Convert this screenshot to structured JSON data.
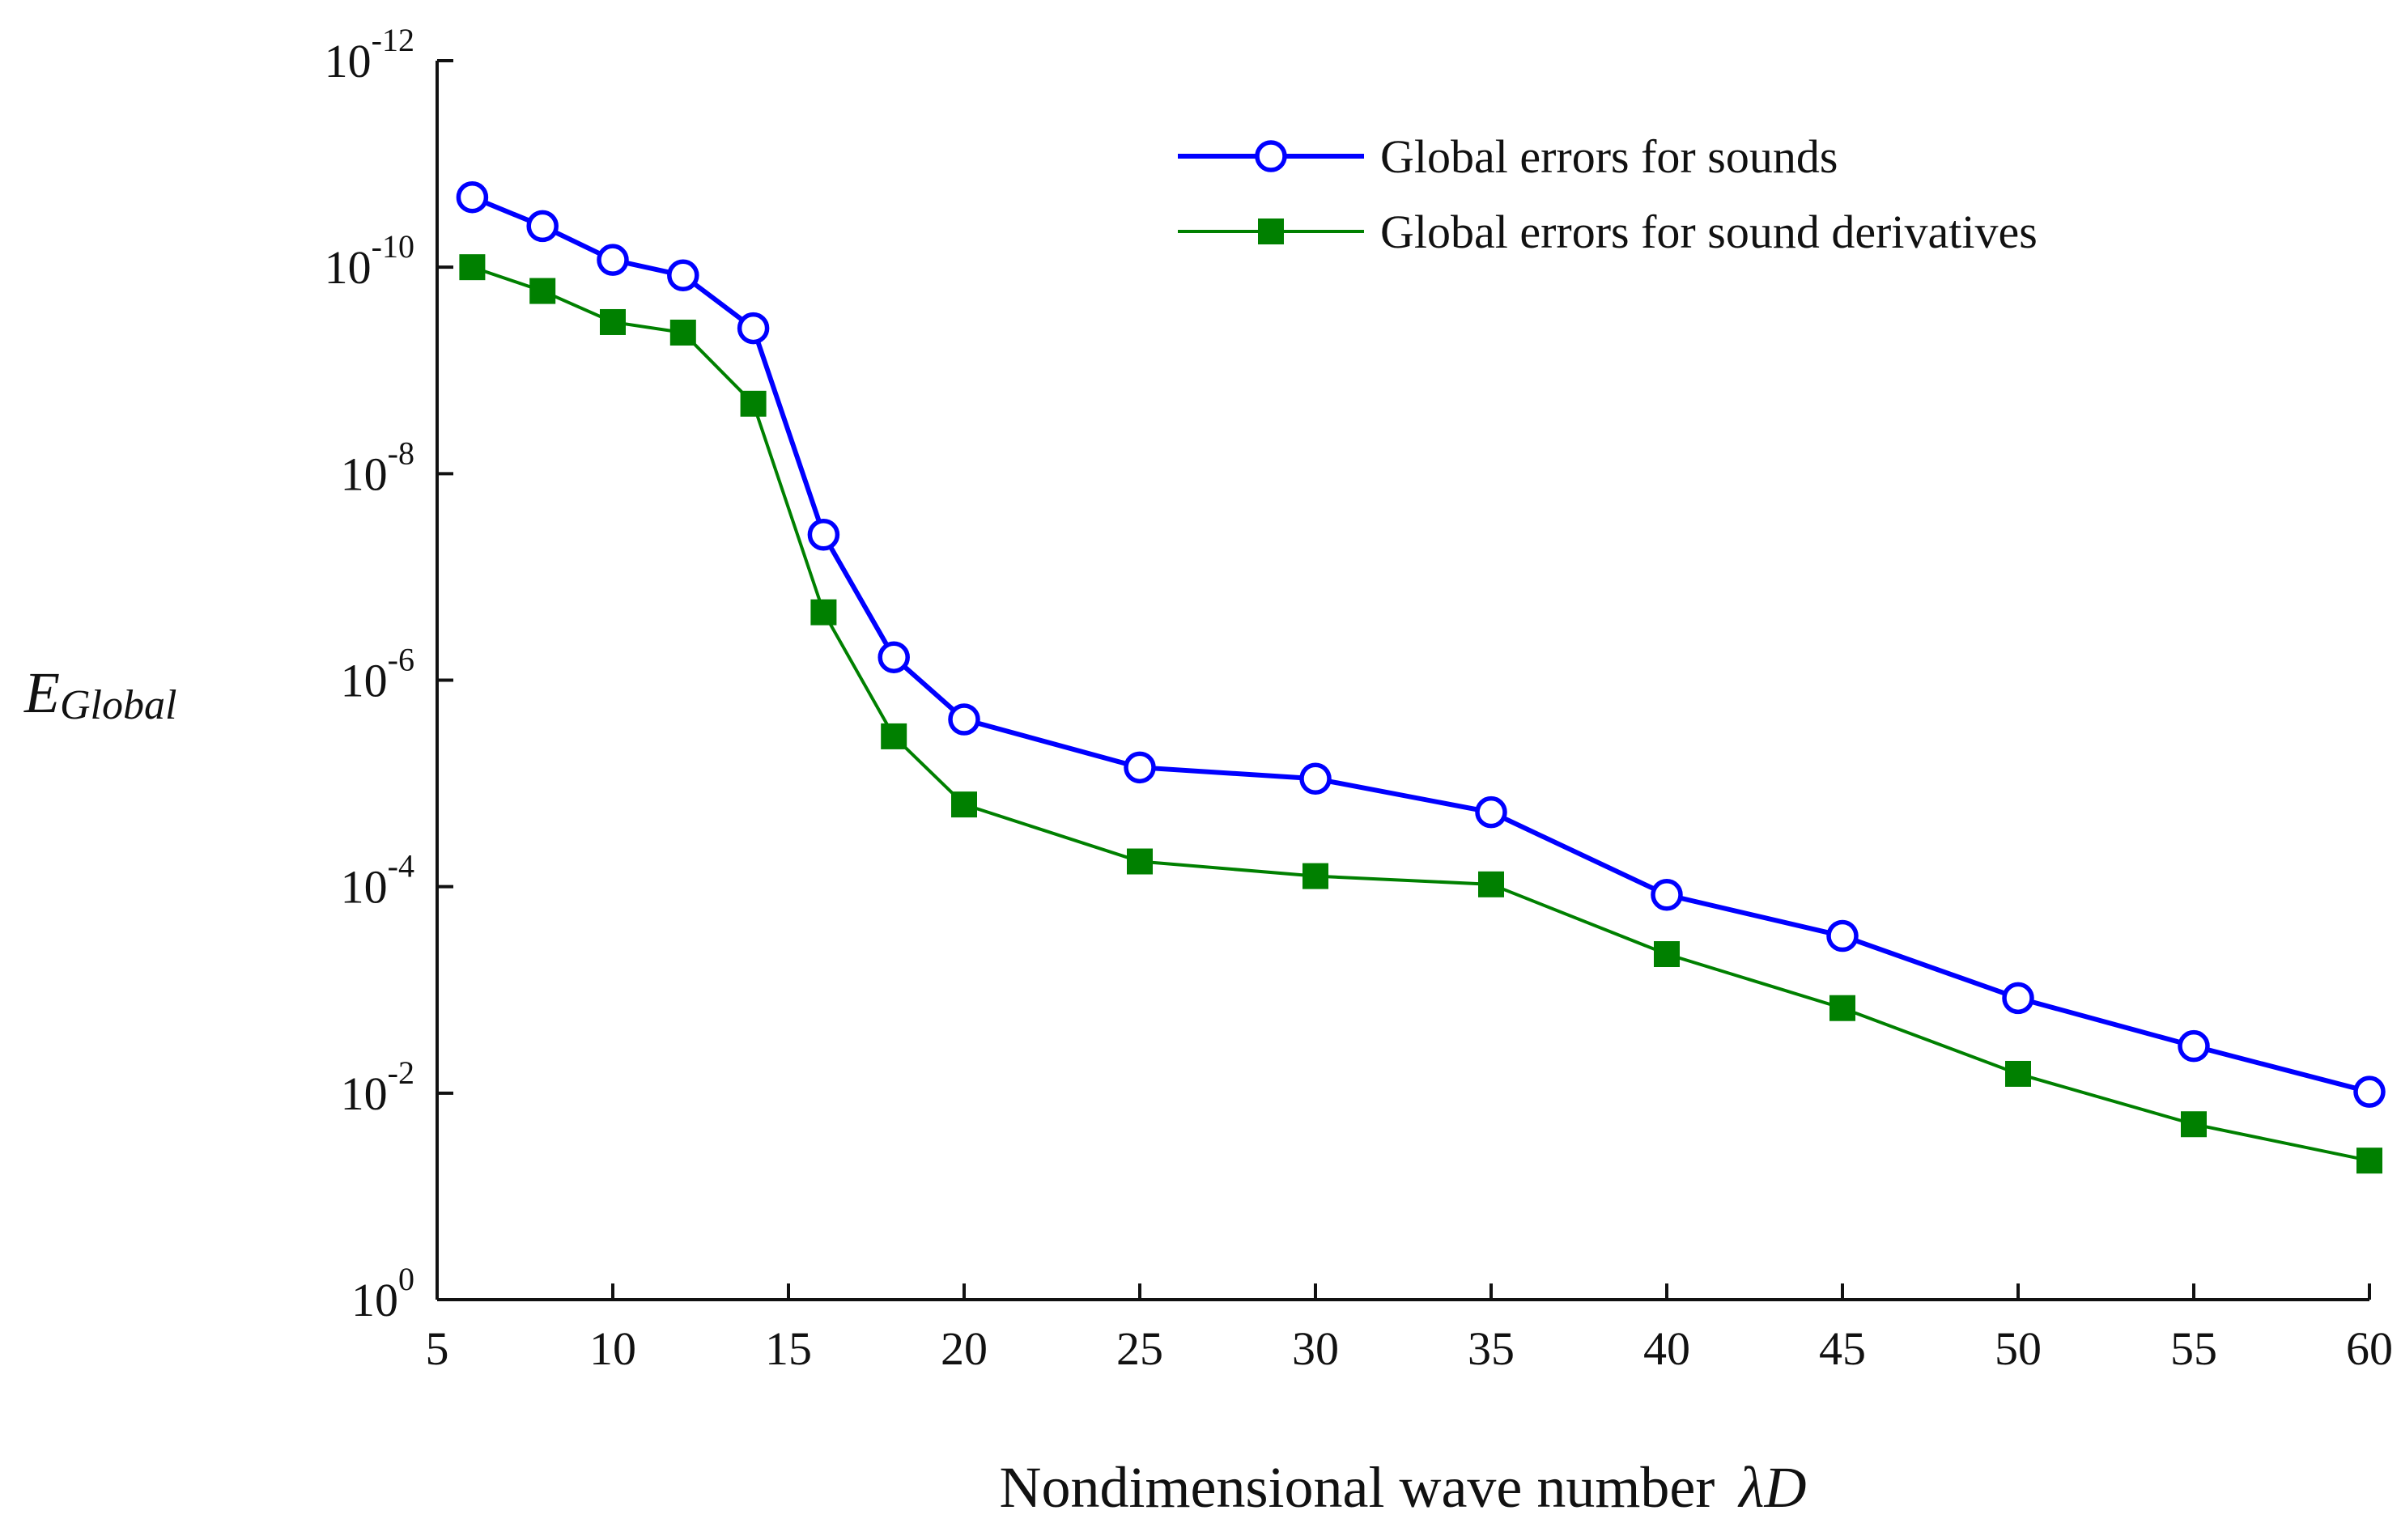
{
  "chart_data": {
    "type": "line",
    "title": "",
    "xlabel": "Nondimensional wave number",
    "xlabel_symbol": "λD",
    "ylabel": "E",
    "ylabel_subscript": "Global",
    "x": [
      6,
      8,
      10,
      12,
      14,
      16,
      18,
      20,
      25,
      30,
      35,
      40,
      45,
      50,
      55,
      60
    ],
    "series": [
      {
        "name": "Global errors for sounds",
        "color": "#0000ff",
        "marker": "circle",
        "values": [
          2.1e-11,
          4e-11,
          8.5e-11,
          1.2e-10,
          3.9e-10,
          3.9e-08,
          6e-07,
          2.4e-06,
          7e-06,
          9e-06,
          1.9e-05,
          0.00012,
          0.0003,
          0.0012,
          0.0035,
          0.0097
        ]
      },
      {
        "name": "Global errors for sound derivatives",
        "color": "#008000",
        "marker": "square",
        "values": [
          1e-10,
          1.7e-10,
          3.4e-10,
          4.3e-10,
          2.1e-09,
          2.2e-07,
          3.5e-06,
          1.6e-05,
          5.7e-05,
          7.9e-05,
          9.5e-05,
          0.00045,
          0.0015,
          0.0065,
          0.02,
          0.045
        ]
      }
    ],
    "xlim": [
      5,
      60
    ],
    "xticks": [
      "5",
      "10",
      "15",
      "20",
      "25",
      "30",
      "35",
      "40",
      "45",
      "50",
      "55",
      "60"
    ],
    "yscale": "log-reversed",
    "ylim": [
      1e-12,
      1
    ],
    "yticks": [
      {
        "base": "10",
        "exp": "-12"
      },
      {
        "base": "10",
        "exp": "-10"
      },
      {
        "base": "10",
        "exp": "-8"
      },
      {
        "base": "10",
        "exp": "-6"
      },
      {
        "base": "10",
        "exp": "-4"
      },
      {
        "base": "10",
        "exp": "-2"
      },
      {
        "base": "10",
        "exp": "0"
      }
    ],
    "grid": false,
    "legend_position": "top-right"
  }
}
